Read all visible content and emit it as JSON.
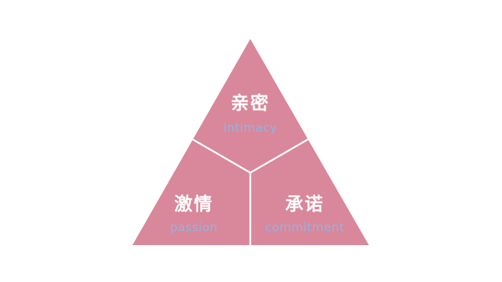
{
  "colors": {
    "triangle_fill": "#d9879a",
    "divider": "#ffffff",
    "chinese_text": "#ffffff",
    "english_text": "#8fb4e8",
    "background": "#ffffff"
  },
  "sections": {
    "top": {
      "chinese": "亲密",
      "english": "intimacy"
    },
    "left": {
      "chinese": "激情",
      "english": "passion"
    },
    "right": {
      "chinese": "承诺",
      "english": "commitment"
    }
  }
}
